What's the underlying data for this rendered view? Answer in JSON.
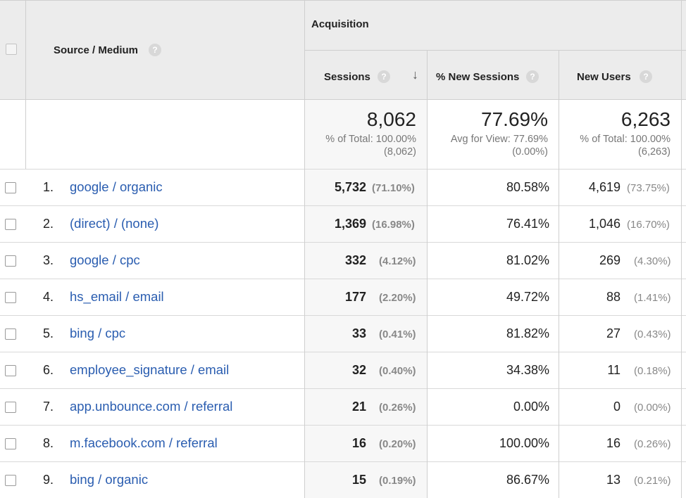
{
  "header": {
    "source_medium": "Source / Medium",
    "acquisition": "Acquisition",
    "sessions": "Sessions",
    "new_sessions_pct": "% New Sessions",
    "new_users": "New Users",
    "help_glyph": "?",
    "sort_glyph": "↓"
  },
  "totals": {
    "sessions": {
      "value": "8,062",
      "line1": "% of Total: 100.00%",
      "line2": "(8,062)"
    },
    "new_sessions_pct": {
      "value": "77.69%",
      "line1": "Avg for View: 77.69%",
      "line2": "(0.00%)"
    },
    "new_users": {
      "value": "6,263",
      "line1": "% of Total: 100.00%",
      "line2": "(6,263)"
    }
  },
  "rows": [
    {
      "index": "1.",
      "source": "google / organic",
      "sessions": "5,732",
      "sessions_pct": "(71.10%)",
      "new_sessions_pct": "80.58%",
      "new_users": "4,619",
      "new_users_pct": "(73.75%)"
    },
    {
      "index": "2.",
      "source": "(direct) / (none)",
      "sessions": "1,369",
      "sessions_pct": "(16.98%)",
      "new_sessions_pct": "76.41%",
      "new_users": "1,046",
      "new_users_pct": "(16.70%)"
    },
    {
      "index": "3.",
      "source": "google / cpc",
      "sessions": "332",
      "sessions_pct": "(4.12%)",
      "new_sessions_pct": "81.02%",
      "new_users": "269",
      "new_users_pct": "(4.30%)"
    },
    {
      "index": "4.",
      "source": "hs_email / email",
      "sessions": "177",
      "sessions_pct": "(2.20%)",
      "new_sessions_pct": "49.72%",
      "new_users": "88",
      "new_users_pct": "(1.41%)"
    },
    {
      "index": "5.",
      "source": "bing / cpc",
      "sessions": "33",
      "sessions_pct": "(0.41%)",
      "new_sessions_pct": "81.82%",
      "new_users": "27",
      "new_users_pct": "(0.43%)"
    },
    {
      "index": "6.",
      "source": "employee_signature / email",
      "sessions": "32",
      "sessions_pct": "(0.40%)",
      "new_sessions_pct": "34.38%",
      "new_users": "11",
      "new_users_pct": "(0.18%)"
    },
    {
      "index": "7.",
      "source": "app.unbounce.com / referral",
      "sessions": "21",
      "sessions_pct": "(0.26%)",
      "new_sessions_pct": "0.00%",
      "new_users": "0",
      "new_users_pct": "(0.00%)"
    },
    {
      "index": "8.",
      "source": "m.facebook.com / referral",
      "sessions": "16",
      "sessions_pct": "(0.20%)",
      "new_sessions_pct": "100.00%",
      "new_users": "16",
      "new_users_pct": "(0.26%)"
    },
    {
      "index": "9.",
      "source": "bing / organic",
      "sessions": "15",
      "sessions_pct": "(0.19%)",
      "new_sessions_pct": "86.67%",
      "new_users": "13",
      "new_users_pct": "(0.21%)"
    }
  ]
}
